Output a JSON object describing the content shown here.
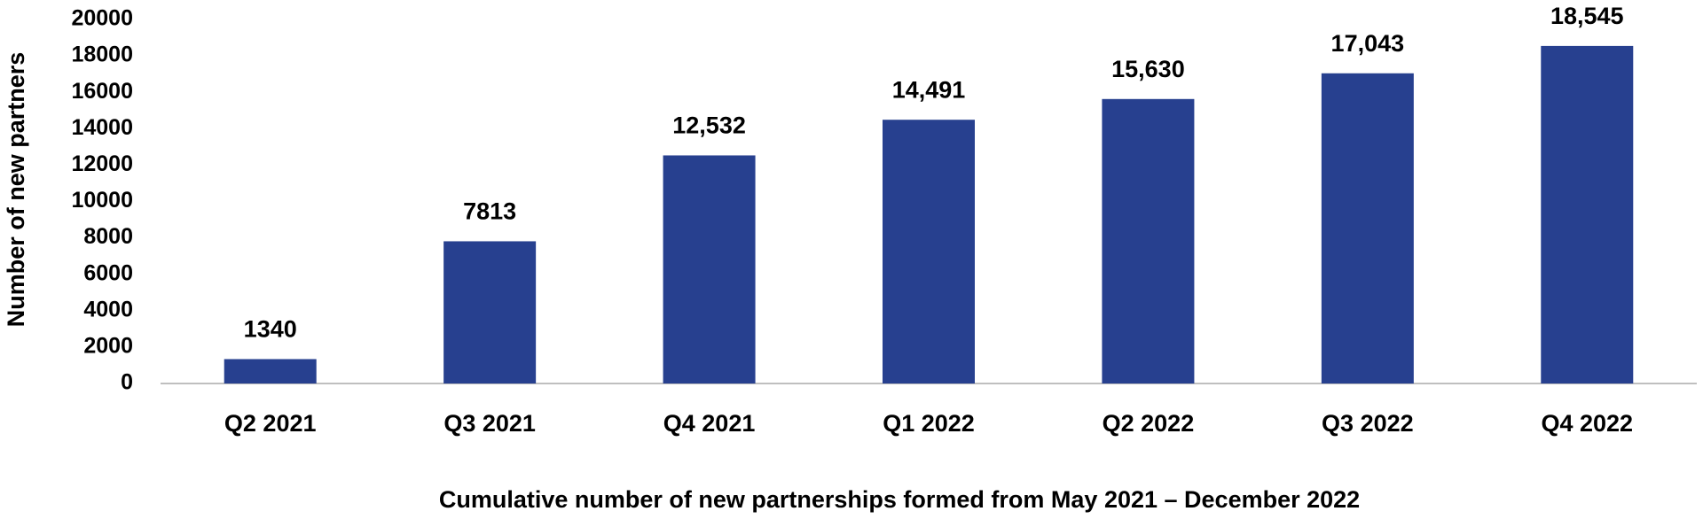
{
  "chart_data": {
    "type": "bar",
    "x_label": "Cumulative number of new partnerships formed from May 2021 – December 2022",
    "y_label": "Number of new partners",
    "categories": [
      "Q2 2021",
      "Q3 2021",
      "Q4 2021",
      "Q1 2022",
      "Q2 2022",
      "Q3 2022",
      "Q4 2022"
    ],
    "values": [
      1340,
      7813,
      12532,
      14491,
      15630,
      17043,
      18545
    ],
    "value_labels": [
      "1340",
      "7813",
      "12,532",
      "14,491",
      "15,630",
      "17,043",
      "18,545"
    ],
    "color": "#27408f",
    "ylim": [
      0,
      20000
    ],
    "yticks": [
      0,
      2000,
      4000,
      6000,
      8000,
      10000,
      12000,
      14000,
      16000,
      18000,
      20000
    ],
    "grid": false
  }
}
